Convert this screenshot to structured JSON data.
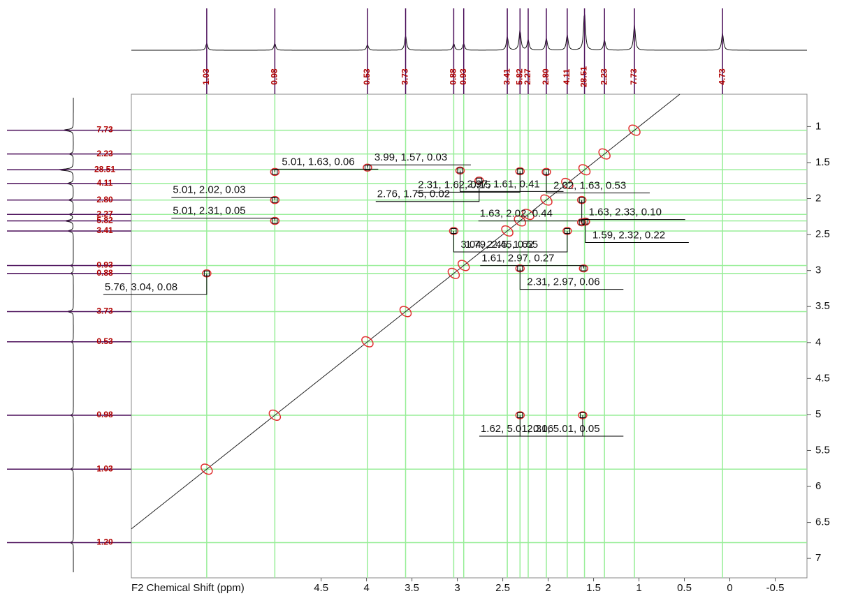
{
  "chart_data": {
    "type": "contour",
    "xlabel": "F2 Chemical Shift (ppm)",
    "xlim": [
      6.59,
      -0.85
    ],
    "xticks": [
      4.5,
      4.0,
      3.5,
      3.0,
      2.5,
      2.0,
      1.5,
      1.0,
      0.5,
      0,
      -0.5
    ],
    "ylim": [
      0.55,
      7.27
    ],
    "yticks": [
      1.0,
      1.5,
      2.0,
      2.5,
      3.0,
      3.5,
      4.0,
      4.5,
      5.0,
      5.5,
      6.0,
      6.5,
      7.0
    ],
    "signals": [
      {
        "ppm": 6.78,
        "integral": "1.20"
      },
      {
        "ppm": 5.76,
        "integral": "1.03"
      },
      {
        "ppm": 5.01,
        "integral": "0.98"
      },
      {
        "ppm": 3.99,
        "integral": "0.53"
      },
      {
        "ppm": 3.57,
        "integral": "3.73"
      },
      {
        "ppm": 3.04,
        "integral": "0.88"
      },
      {
        "ppm": 2.93,
        "integral": "0.93"
      },
      {
        "ppm": 2.45,
        "integral": "3.41"
      },
      {
        "ppm": 2.31,
        "integral": "5.82"
      },
      {
        "ppm": 2.22,
        "integral": "2.27"
      },
      {
        "ppm": 2.02,
        "integral": "2.80"
      },
      {
        "ppm": 1.79,
        "integral": "4.11"
      },
      {
        "ppm": 1.6,
        "integral": "28.51"
      },
      {
        "ppm": 1.38,
        "integral": "2.23"
      },
      {
        "ppm": 1.05,
        "integral": "7.73"
      },
      {
        "ppm": 0.08,
        "integral": "4.73"
      }
    ],
    "peaks": [
      {
        "x": 3.99,
        "y": 1.57,
        "label": "3.99, 1.57, 0.03"
      },
      {
        "x": 2.76,
        "y": 1.75,
        "label": "2.76, 1.75, 0.02"
      },
      {
        "x": 2.02,
        "y": 1.63,
        "label": "2.02, 1.63, 0.53"
      },
      {
        "x": 5.01,
        "y": 2.02,
        "label": "5.01, 2.02, 0.03"
      },
      {
        "x": 2.97,
        "y": 1.61,
        "label": "2.97, 1.61, 0.41"
      },
      {
        "x": 1.63,
        "y": 2.02,
        "label": "1.63, 2.02, 0.44"
      },
      {
        "x": 5.01,
        "y": 1.63,
        "label": "5.01, 1.63, 0.06"
      },
      {
        "x": 2.31,
        "y": 1.62,
        "label": "2.31, 1.62, 0.15"
      },
      {
        "x": 1.59,
        "y": 2.32,
        "label": "1.59, 2.32, 0.22"
      },
      {
        "x": 5.01,
        "y": 2.31,
        "label": "5.01, 2.31, 0.05"
      },
      {
        "x": 3.04,
        "y": 2.45,
        "label": "3.04, 2.45, 1.62"
      },
      {
        "x": 1.79,
        "y": 2.45,
        "label": "1.79, 2.45, 0.55"
      },
      {
        "x": 1.63,
        "y": 2.33,
        "label": "1.63, 2.33, 0.10"
      },
      {
        "x": 5.76,
        "y": 3.04,
        "label": "5.76, 3.04, 0.08"
      },
      {
        "x": 2.31,
        "y": 2.97,
        "label": "2.31, 2.97, 0.06"
      },
      {
        "x": 1.61,
        "y": 2.97,
        "label": "1.61, 2.97, 0.27"
      },
      {
        "x": 2.31,
        "y": 5.01,
        "label": "2.31, 5.01, 0.05"
      },
      {
        "x": 1.62,
        "y": 5.01,
        "label": "1.62, 5.01, 0.06"
      }
    ],
    "grid_color": "#98ee98",
    "contour_color": "#e03030"
  }
}
